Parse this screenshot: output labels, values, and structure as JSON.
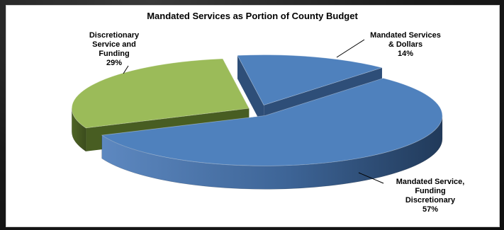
{
  "chart_data": {
    "type": "pie",
    "style": "3d-exploded",
    "title": "Mandated Services as Portion of County Budget",
    "slices": [
      {
        "name": "Mandated Services & Dollars",
        "label_lines": [
          "Mandated Services",
          "& Dollars",
          "14%"
        ],
        "value": 14,
        "color": "#4f81bd"
      },
      {
        "name": "Mandated Service, Funding Discretionary",
        "label_lines": [
          "Mandated Service,",
          "Funding",
          "Discretionary",
          "57%"
        ],
        "value": 57,
        "color": "#4f81bd"
      },
      {
        "name": "Discretionary Service and Funding",
        "label_lines": [
          "Discretionary",
          "Service and",
          "Funding",
          "29%"
        ],
        "value": 29,
        "color": "#9bbb59"
      }
    ],
    "legend": "none"
  }
}
